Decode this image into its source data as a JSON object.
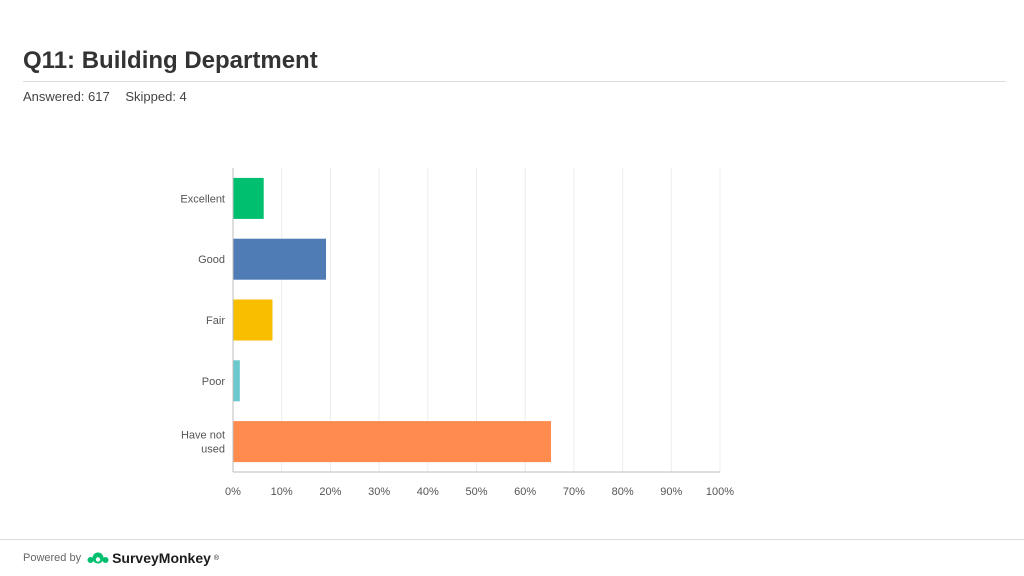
{
  "page": {
    "title": "Q11: Building Department",
    "answered": "Answered: 617",
    "skipped": "Skipped: 4",
    "powered_by": "Powered by",
    "brand": "SurveyMonkey",
    "brand_mark": "®"
  },
  "chart_data": {
    "type": "bar",
    "orientation": "horizontal",
    "title": "",
    "xlabel": "",
    "ylabel": "",
    "xlim": [
      0,
      100
    ],
    "grid": true,
    "categories": [
      "Excellent",
      "Good",
      "Fair",
      "Poor",
      "Have not used"
    ],
    "category_lines": [
      [
        "Excellent"
      ],
      [
        "Good"
      ],
      [
        "Fair"
      ],
      [
        "Poor"
      ],
      [
        "Have not",
        "used"
      ]
    ],
    "values": [
      6.2,
      19.0,
      8.0,
      1.3,
      65.2
    ],
    "colors": [
      "#00bf6f",
      "#507cb6",
      "#f9be00",
      "#6bc8cd",
      "#ff8b4f"
    ],
    "ticks": [
      "0%",
      "10%",
      "20%",
      "30%",
      "40%",
      "50%",
      "60%",
      "70%",
      "80%",
      "90%",
      "100%"
    ]
  }
}
